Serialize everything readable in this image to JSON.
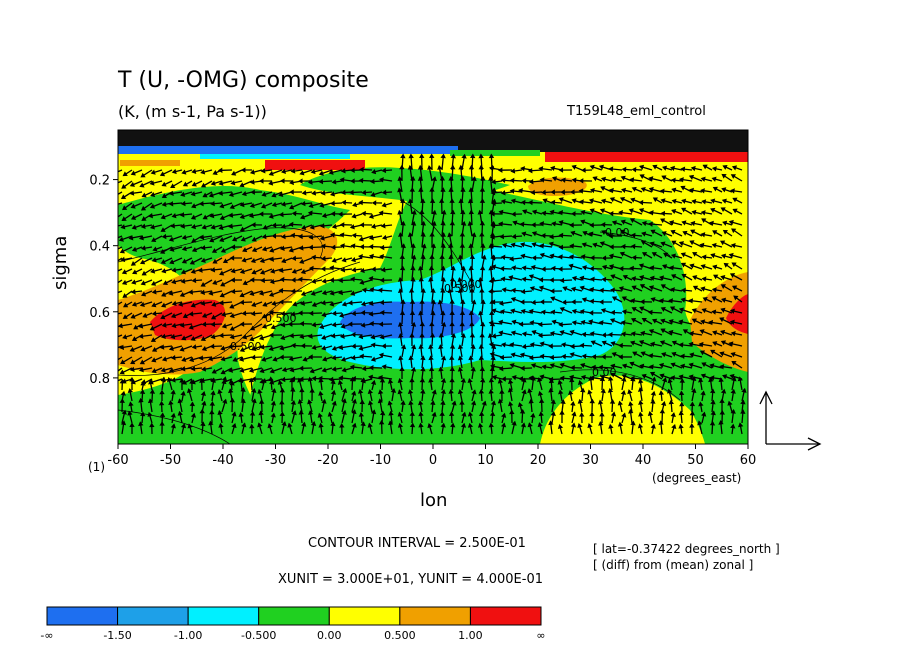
{
  "chart_data": {
    "type": "heatmap",
    "title": "T (U, -OMG) composite",
    "subtitle": "(K, (m s-1, Pa s-1))",
    "run_name": "T159L48_eml_control",
    "xlabel": "lon",
    "ylabel": "sigma",
    "x_units_label": "(degrees_east)",
    "y_bottom_label": "(1)",
    "xlim": [
      -60,
      60
    ],
    "ylim": [
      1.0,
      0.05
    ],
    "x_ticks": [
      "-60",
      "-50",
      "-40",
      "-30",
      "-20",
      "-10",
      "0",
      "10",
      "20",
      "30",
      "40",
      "50",
      "60"
    ],
    "y_ticks": [
      "0.2",
      "0.4",
      "0.6",
      "0.8"
    ],
    "contour_interval_text": "CONTOUR INTERVAL = 2.500E-01",
    "unit_text": "XUNIT = 3.000E+01, YUNIT = 4.000E-01",
    "info_lines": [
      "[ lat=-0.37422 degrees_north ]",
      "[ (diff) from (mean) zonal ]"
    ],
    "contour_labels": [
      "0.500",
      "0.00",
      "-0.500",
      "0.000",
      "0.500",
      "0.00"
    ],
    "legend": {
      "labels": [
        "-∞",
        "-1.50",
        "-1.00",
        "-0.500",
        "0.00",
        "0.500",
        "1.00",
        "∞"
      ],
      "colors": [
        "#1e6ff0",
        "#1ea0e8",
        "#00f0ff",
        "#20d020",
        "#ffff00",
        "#f0a000",
        "#f01010"
      ]
    },
    "grid": false
  }
}
